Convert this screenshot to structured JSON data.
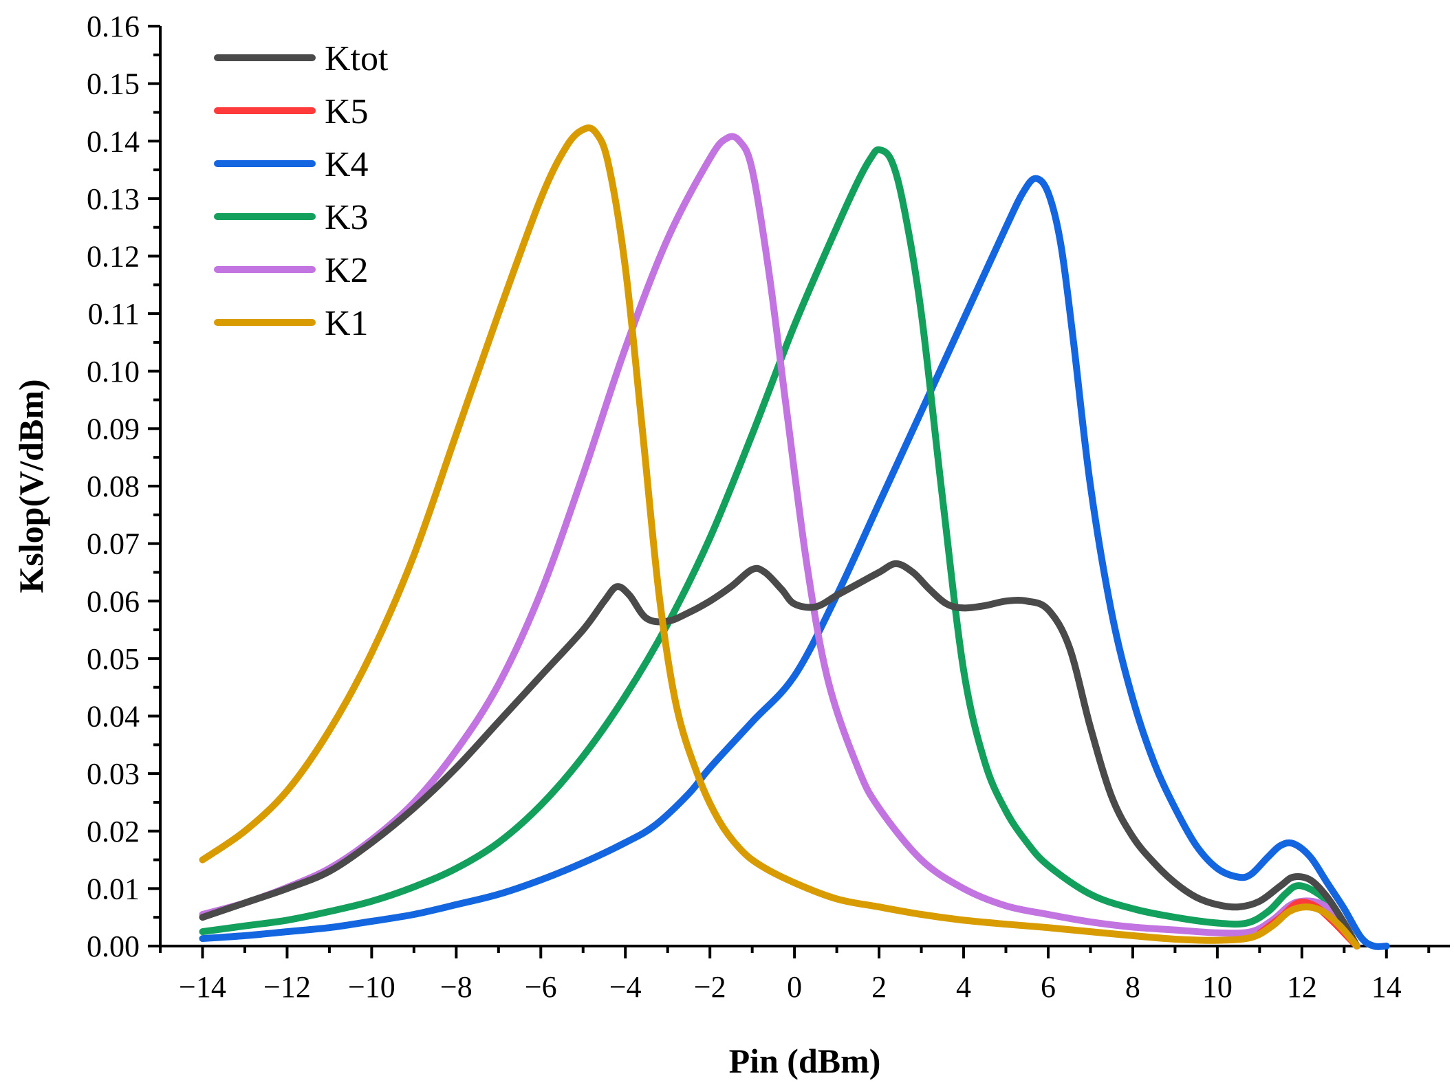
{
  "chart_data": {
    "type": "line",
    "title": "",
    "xlabel": "Pin (dBm)",
    "ylabel": "Kslop(V/dBm)",
    "xlim": [
      -15,
      15.5
    ],
    "ylim": [
      0,
      0.16
    ],
    "xticks": [
      -14,
      -12,
      -10,
      -8,
      -6,
      -4,
      -2,
      0,
      2,
      4,
      6,
      8,
      10,
      12,
      14
    ],
    "xtick_labels": [
      "−14",
      "−12",
      "−10",
      "−8",
      "−6",
      "−4",
      "−2",
      "0",
      "2",
      "4",
      "6",
      "8",
      "10",
      "12",
      "14"
    ],
    "yticks": [
      0,
      0.01,
      0.02,
      0.03,
      0.04,
      0.05,
      0.06,
      0.07,
      0.08,
      0.09,
      0.1,
      0.11,
      0.12,
      0.13,
      0.14,
      0.15,
      0.16
    ],
    "ytick_labels": [
      "0.00",
      "0.01",
      "0.02",
      "0.03",
      "0.04",
      "0.05",
      "0.06",
      "0.07",
      "0.08",
      "0.09",
      "0.10",
      "0.11",
      "0.12",
      "0.13",
      "0.14",
      "0.15",
      "0.16"
    ],
    "legend_position": "top-left",
    "series": [
      {
        "name": "Ktot",
        "color": "#4a4a4a",
        "points": [
          [
            -14,
            0.005
          ],
          [
            -13,
            0.0075
          ],
          [
            -12,
            0.01
          ],
          [
            -11,
            0.013
          ],
          [
            -10,
            0.018
          ],
          [
            -9,
            0.024
          ],
          [
            -8,
            0.031
          ],
          [
            -7,
            0.039
          ],
          [
            -6,
            0.047
          ],
          [
            -5,
            0.055
          ],
          [
            -4.5,
            0.06
          ],
          [
            -4.2,
            0.0625
          ],
          [
            -3.9,
            0.061
          ],
          [
            -3.5,
            0.057
          ],
          [
            -3,
            0.0565
          ],
          [
            -2.5,
            0.058
          ],
          [
            -2,
            0.06
          ],
          [
            -1.5,
            0.0625
          ],
          [
            -1,
            0.0655
          ],
          [
            -0.7,
            0.065
          ],
          [
            -0.3,
            0.062
          ],
          [
            0,
            0.0595
          ],
          [
            0.5,
            0.059
          ],
          [
            1,
            0.061
          ],
          [
            1.5,
            0.063
          ],
          [
            2,
            0.065
          ],
          [
            2.4,
            0.0665
          ],
          [
            2.8,
            0.065
          ],
          [
            3.2,
            0.062
          ],
          [
            3.6,
            0.0595
          ],
          [
            4,
            0.0588
          ],
          [
            4.5,
            0.0592
          ],
          [
            5,
            0.06
          ],
          [
            5.5,
            0.06
          ],
          [
            6,
            0.0585
          ],
          [
            6.5,
            0.052
          ],
          [
            7,
            0.038
          ],
          [
            7.5,
            0.026
          ],
          [
            8,
            0.019
          ],
          [
            8.5,
            0.0145
          ],
          [
            9,
            0.011
          ],
          [
            9.5,
            0.0085
          ],
          [
            10,
            0.0072
          ],
          [
            10.5,
            0.0068
          ],
          [
            11,
            0.0078
          ],
          [
            11.5,
            0.0105
          ],
          [
            11.8,
            0.012
          ],
          [
            12.2,
            0.0115
          ],
          [
            12.6,
            0.0085
          ],
          [
            13,
            0.004
          ],
          [
            13.3,
            0
          ]
        ]
      },
      {
        "name": "K5",
        "color": "#ff3a3a",
        "points": [
          [
            11,
            0.0022
          ],
          [
            11.5,
            0.005
          ],
          [
            11.9,
            0.0075
          ],
          [
            12.3,
            0.007
          ],
          [
            12.7,
            0.0045
          ],
          [
            13.1,
            0.0015
          ],
          [
            13.3,
            0
          ]
        ]
      },
      {
        "name": "K4",
        "color": "#1366e0",
        "points": [
          [
            -14,
            0.0013
          ],
          [
            -13,
            0.0018
          ],
          [
            -12,
            0.0025
          ],
          [
            -11,
            0.0032
          ],
          [
            -10,
            0.0043
          ],
          [
            -9,
            0.0055
          ],
          [
            -8,
            0.0072
          ],
          [
            -7,
            0.009
          ],
          [
            -6,
            0.0115
          ],
          [
            -5,
            0.0145
          ],
          [
            -4,
            0.018
          ],
          [
            -3.3,
            0.021
          ],
          [
            -2.5,
            0.0265
          ],
          [
            -2,
            0.031
          ],
          [
            -1,
            0.039
          ],
          [
            0,
            0.047
          ],
          [
            1,
            0.061
          ],
          [
            2,
            0.077
          ],
          [
            3,
            0.093
          ],
          [
            4,
            0.109
          ],
          [
            5,
            0.125
          ],
          [
            5.4,
            0.131
          ],
          [
            5.7,
            0.1335
          ],
          [
            6,
            0.131
          ],
          [
            6.3,
            0.122
          ],
          [
            6.6,
            0.105
          ],
          [
            7,
            0.08
          ],
          [
            7.5,
            0.058
          ],
          [
            8,
            0.043
          ],
          [
            8.5,
            0.032
          ],
          [
            9,
            0.024
          ],
          [
            9.5,
            0.0175
          ],
          [
            10,
            0.0135
          ],
          [
            10.5,
            0.012
          ],
          [
            10.8,
            0.0125
          ],
          [
            11.2,
            0.0155
          ],
          [
            11.5,
            0.0175
          ],
          [
            11.8,
            0.0178
          ],
          [
            12.2,
            0.0155
          ],
          [
            12.6,
            0.011
          ],
          [
            13,
            0.0065
          ],
          [
            13.4,
            0.0015
          ],
          [
            13.7,
            0
          ],
          [
            14,
            0
          ]
        ]
      },
      {
        "name": "K3",
        "color": "#13a05c",
        "points": [
          [
            -14,
            0.0025
          ],
          [
            -13,
            0.0035
          ],
          [
            -12,
            0.0045
          ],
          [
            -11,
            0.006
          ],
          [
            -10,
            0.0078
          ],
          [
            -9,
            0.0103
          ],
          [
            -8,
            0.0135
          ],
          [
            -7,
            0.018
          ],
          [
            -6,
            0.0245
          ],
          [
            -5,
            0.033
          ],
          [
            -4,
            0.0435
          ],
          [
            -3,
            0.056
          ],
          [
            -2,
            0.071
          ],
          [
            -1,
            0.089
          ],
          [
            0,
            0.108
          ],
          [
            1,
            0.125
          ],
          [
            1.5,
            0.133
          ],
          [
            1.8,
            0.137
          ],
          [
            2,
            0.1385
          ],
          [
            2.3,
            0.1365
          ],
          [
            2.6,
            0.128
          ],
          [
            3,
            0.11
          ],
          [
            3.5,
            0.078
          ],
          [
            4,
            0.048
          ],
          [
            4.5,
            0.032
          ],
          [
            5,
            0.0235
          ],
          [
            5.5,
            0.018
          ],
          [
            6,
            0.014
          ],
          [
            7,
            0.009
          ],
          [
            8,
            0.0065
          ],
          [
            9,
            0.005
          ],
          [
            10,
            0.004
          ],
          [
            10.7,
            0.004
          ],
          [
            11.2,
            0.006
          ],
          [
            11.6,
            0.009
          ],
          [
            11.9,
            0.0105
          ],
          [
            12.3,
            0.0095
          ],
          [
            12.7,
            0.007
          ],
          [
            13,
            0.0035
          ],
          [
            13.3,
            0
          ]
        ]
      },
      {
        "name": "K2",
        "color": "#c274e0",
        "points": [
          [
            -14,
            0.0055
          ],
          [
            -13,
            0.0075
          ],
          [
            -12,
            0.0102
          ],
          [
            -11,
            0.0135
          ],
          [
            -10,
            0.0185
          ],
          [
            -9,
            0.025
          ],
          [
            -8,
            0.034
          ],
          [
            -7,
            0.0455
          ],
          [
            -6,
            0.0615
          ],
          [
            -5,
            0.082
          ],
          [
            -4,
            0.104
          ],
          [
            -3,
            0.123
          ],
          [
            -2,
            0.137
          ],
          [
            -1.6,
            0.1405
          ],
          [
            -1.3,
            0.14
          ],
          [
            -1,
            0.135
          ],
          [
            -0.6,
            0.117
          ],
          [
            -0.2,
            0.094
          ],
          [
            0.3,
            0.066
          ],
          [
            0.8,
            0.046
          ],
          [
            1.5,
            0.031
          ],
          [
            2,
            0.024
          ],
          [
            3,
            0.015
          ],
          [
            4,
            0.01
          ],
          [
            5,
            0.007
          ],
          [
            6,
            0.0055
          ],
          [
            7,
            0.0042
          ],
          [
            8,
            0.0033
          ],
          [
            9,
            0.0028
          ],
          [
            10,
            0.0023
          ],
          [
            10.8,
            0.0025
          ],
          [
            11.3,
            0.0045
          ],
          [
            11.7,
            0.007
          ],
          [
            12,
            0.0078
          ],
          [
            12.4,
            0.0075
          ],
          [
            12.8,
            0.0055
          ],
          [
            13.1,
            0.0025
          ],
          [
            13.3,
            0
          ]
        ]
      },
      {
        "name": "K1",
        "color": "#d89c00",
        "points": [
          [
            -14,
            0.015
          ],
          [
            -13,
            0.02
          ],
          [
            -12,
            0.027
          ],
          [
            -11,
            0.0375
          ],
          [
            -10,
            0.051
          ],
          [
            -9,
            0.068
          ],
          [
            -8,
            0.089
          ],
          [
            -7,
            0.11
          ],
          [
            -6,
            0.13
          ],
          [
            -5.4,
            0.139
          ],
          [
            -5,
            0.142
          ],
          [
            -4.7,
            0.1415
          ],
          [
            -4.4,
            0.136
          ],
          [
            -4,
            0.118
          ],
          [
            -3.6,
            0.09
          ],
          [
            -3.2,
            0.061
          ],
          [
            -2.8,
            0.042
          ],
          [
            -2.3,
            0.03
          ],
          [
            -1.8,
            0.022
          ],
          [
            -1.3,
            0.017
          ],
          [
            -0.8,
            0.014
          ],
          [
            0,
            0.011
          ],
          [
            1,
            0.0082
          ],
          [
            2,
            0.0068
          ],
          [
            3,
            0.0055
          ],
          [
            4,
            0.0045
          ],
          [
            5,
            0.0038
          ],
          [
            6,
            0.0032
          ],
          [
            7,
            0.0025
          ],
          [
            8,
            0.0018
          ],
          [
            9,
            0.0012
          ],
          [
            10,
            0.001
          ],
          [
            10.8,
            0.0015
          ],
          [
            11.3,
            0.0035
          ],
          [
            11.7,
            0.006
          ],
          [
            12.1,
            0.0068
          ],
          [
            12.5,
            0.006
          ],
          [
            12.9,
            0.0035
          ],
          [
            13.3,
            0
          ]
        ]
      }
    ]
  }
}
